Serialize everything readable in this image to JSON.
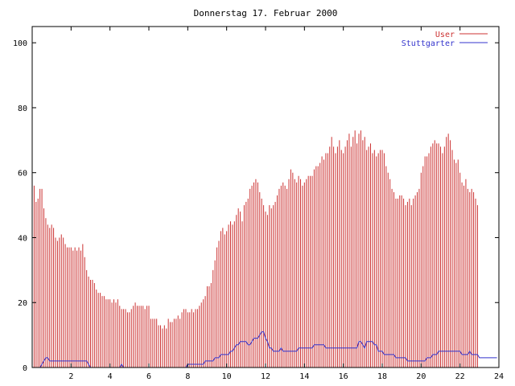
{
  "chart_data": {
    "type": "bar",
    "title": "Donnerstag 17. Februar 2000",
    "xlabel": "",
    "ylabel": "",
    "xlim": [
      0,
      24
    ],
    "ylim": [
      0,
      105
    ],
    "grid": false,
    "legend_position": "top-right",
    "x_ticks": [
      "2",
      "4",
      "6",
      "8",
      "10",
      "12",
      "14",
      "16",
      "18",
      "20",
      "22",
      "24"
    ],
    "x_tick_values": [
      2,
      4,
      6,
      8,
      10,
      12,
      14,
      16,
      18,
      20,
      22,
      24
    ],
    "y_ticks": [
      "0",
      "20",
      "40",
      "60",
      "80",
      "100"
    ],
    "y_tick_values": [
      0,
      20,
      40,
      60,
      80,
      100
    ],
    "x_step_hours": 0.1,
    "series": [
      {
        "name": "User",
        "style": "impulses",
        "color": "#cc3333",
        "values": [
          57,
          56,
          51,
          52,
          55,
          55,
          49,
          46,
          44,
          43,
          44,
          43,
          40,
          39,
          40,
          41,
          40,
          38,
          37,
          37,
          37,
          36,
          37,
          36,
          37,
          36,
          38,
          34,
          30,
          28,
          27,
          27,
          26,
          24,
          23,
          23,
          22,
          22,
          21,
          21,
          21,
          20,
          21,
          20,
          21,
          19,
          18,
          18,
          18,
          17,
          17,
          18,
          19,
          20,
          19,
          19,
          19,
          19,
          18,
          19,
          19,
          15,
          15,
          15,
          15,
          13,
          13,
          12,
          13,
          12,
          15,
          14,
          14,
          15,
          15,
          16,
          15,
          17,
          18,
          18,
          17,
          17,
          18,
          17,
          18,
          18,
          19,
          20,
          21,
          22,
          25,
          25,
          26,
          30,
          33,
          37,
          39,
          42,
          43,
          41,
          42,
          44,
          45,
          44,
          45,
          47,
          49,
          48,
          45,
          50,
          51,
          52,
          55,
          56,
          57,
          58,
          57,
          54,
          52,
          50,
          48,
          47,
          50,
          49,
          50,
          51,
          53,
          55,
          56,
          57,
          56,
          55,
          58,
          61,
          60,
          58,
          57,
          59,
          58,
          56,
          57,
          58,
          59,
          59,
          59,
          61,
          62,
          62,
          63,
          65,
          64,
          66,
          66,
          68,
          71,
          68,
          66,
          68,
          70,
          67,
          66,
          68,
          70,
          72,
          68,
          71,
          73,
          69,
          72,
          73,
          70,
          71,
          67,
          68,
          69,
          66,
          67,
          65,
          66,
          67,
          67,
          66,
          62,
          60,
          58,
          55,
          54,
          52,
          52,
          53,
          53,
          52,
          50,
          51,
          52,
          50,
          52,
          53,
          54,
          55,
          60,
          62,
          65,
          65,
          66,
          68,
          69,
          70,
          69,
          69,
          68,
          66,
          68,
          71,
          72,
          70,
          67,
          64,
          63,
          64,
          60,
          57,
          56,
          58,
          55,
          54,
          55,
          54,
          52,
          50
        ]
      },
      {
        "name": "Stuttgarter",
        "style": "line",
        "color": "#3333cc",
        "values": [
          0,
          0,
          0,
          0,
          0,
          1,
          2,
          3,
          3,
          2,
          2,
          2,
          2,
          2,
          2,
          2,
          2,
          2,
          2,
          2,
          2,
          2,
          2,
          2,
          2,
          2,
          2,
          2,
          2,
          1,
          0,
          0,
          0,
          0,
          0,
          0,
          0,
          0,
          0,
          0,
          0,
          0,
          0,
          0,
          0,
          0,
          1,
          0,
          0,
          0,
          0,
          0,
          0,
          0,
          0,
          0,
          0,
          0,
          0,
          0,
          0,
          0,
          0,
          0,
          0,
          0,
          0,
          0,
          0,
          0,
          0,
          0,
          0,
          0,
          0,
          0,
          0,
          0,
          0,
          0,
          1,
          1,
          1,
          1,
          1,
          1,
          1,
          1,
          1,
          2,
          2,
          2,
          2,
          2,
          3,
          3,
          3,
          4,
          4,
          4,
          4,
          4,
          5,
          5,
          6,
          7,
          7,
          8,
          8,
          8,
          8,
          7,
          7,
          8,
          9,
          9,
          9,
          10,
          11,
          11,
          9,
          8,
          6,
          6,
          5,
          5,
          5,
          5,
          6,
          5,
          5,
          5,
          5,
          5,
          5,
          5,
          5,
          6,
          6,
          6,
          6,
          6,
          6,
          6,
          6,
          7,
          7,
          7,
          7,
          7,
          7,
          6,
          6,
          6,
          6,
          6,
          6,
          6,
          6,
          6,
          6,
          6,
          6,
          6,
          6,
          6,
          6,
          6,
          8,
          8,
          7,
          6,
          8,
          8,
          8,
          8,
          7,
          7,
          5,
          5,
          5,
          4,
          4,
          4,
          4,
          4,
          4,
          3,
          3,
          3,
          3,
          3,
          3,
          2,
          2,
          2,
          2,
          2,
          2,
          2,
          2,
          2,
          2,
          3,
          3,
          3,
          4,
          4,
          4,
          5,
          5,
          5,
          5,
          5,
          5,
          5,
          5,
          5,
          5,
          5,
          5,
          4,
          4,
          4,
          4,
          5,
          4,
          4,
          4,
          4,
          3,
          3,
          3,
          3,
          3,
          3,
          3,
          3,
          3,
          3
        ]
      }
    ]
  }
}
